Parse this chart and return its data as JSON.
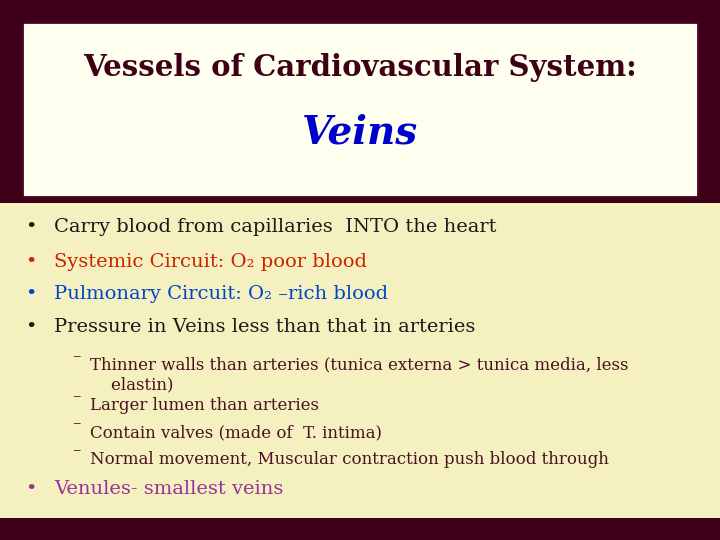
{
  "title_line1": "Vessels of Cardiovascular System:",
  "title_line2": "Veins",
  "title_line1_color": "#3d0014",
  "title_line2_color": "#0000cc",
  "title_bg_color": "#fffff0",
  "title_border_color": "#4a0020",
  "background_color": "#f5f0c0",
  "dark_band_color": "#3d0018",
  "bullet_color_black": "#1a1a1a",
  "bullet_color_red": "#cc2200",
  "bullet_color_blue": "#0044cc",
  "bullet_color_purple": "#993399",
  "sub_color": "#4a1020",
  "bullets": [
    {
      "text": "Carry blood from capillaries  INTO the heart",
      "color": "#1a1a1a",
      "bullet_color": "#1a1a1a"
    },
    {
      "text": "Systemic Circuit: O₂ poor blood",
      "color": "#cc2200",
      "bullet_color": "#cc2200"
    },
    {
      "text": "Pulmonary Circuit: O₂ –rich blood",
      "color": "#0044cc",
      "bullet_color": "#0044cc"
    },
    {
      "text": "Pressure in Veins less than that in arteries",
      "color": "#1a1a1a",
      "bullet_color": "#1a1a1a"
    }
  ],
  "sub_bullets": [
    "Thinner walls than arteries (tunica externa > tunica media, less\n    elastin)",
    "Larger lumen than arteries",
    "Contain valves (made of  T. intima)",
    "Normal movement, Muscular contraction push blood through"
  ],
  "last_bullet_text": "Venules- smallest veins",
  "last_bullet_color": "#993399"
}
